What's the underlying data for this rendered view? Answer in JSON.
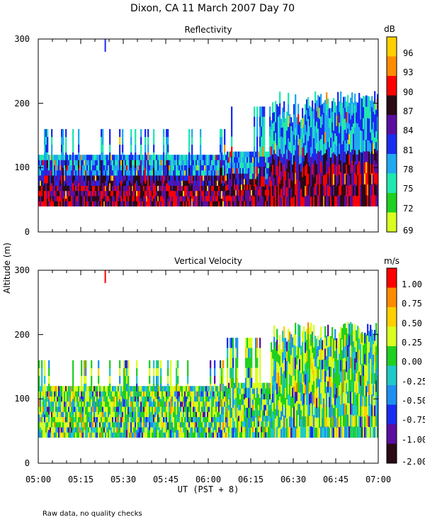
{
  "figure": {
    "title": "Dixon, CA 11 March 2007  Day  70",
    "ylabel": "Altitude (m)",
    "xlabel": "UT  (PST + 8)",
    "footnote": "Raw data, no quality checks",
    "x_ticks": [
      "05:00",
      "05:15",
      "05:30",
      "05:45",
      "06:00",
      "06:15",
      "06:30",
      "06:45",
      "07:00"
    ]
  },
  "chart_data": [
    {
      "type": "heatmap",
      "title": "Reflectivity",
      "xlabel": "UT  (PST + 8)",
      "ylabel": "Altitude (m)",
      "x_range": [
        "05:00",
        "07:00"
      ],
      "ylim": [
        0,
        300
      ],
      "y_ticks": [
        "0",
        "100",
        "200",
        "300"
      ],
      "colorbar": {
        "unit": "dB",
        "labels": [
          "96",
          "93",
          "90",
          "87",
          "84",
          "81",
          "78",
          "75",
          "72",
          "69"
        ],
        "colors": [
          "#ffd000",
          "#ff8c00",
          "#ff0000",
          "#2a0a14",
          "#5a0ea0",
          "#1a2cf0",
          "#20a8f0",
          "#20e8b0",
          "#20d020",
          "#d8ff20"
        ]
      }
    },
    {
      "type": "heatmap",
      "title": "Vertical Velocity",
      "xlabel": "UT  (PST + 8)",
      "ylabel": "Altitude (m)",
      "x_range": [
        "05:00",
        "07:00"
      ],
      "ylim": [
        0,
        300
      ],
      "y_ticks": [
        "0",
        "100",
        "200",
        "300"
      ],
      "colorbar": {
        "unit": "m/s",
        "labels": [
          "1.00",
          "0.75",
          "0.50",
          "0.25",
          "0.00",
          "-0.25",
          "-0.50",
          "-0.75",
          "-1.00",
          "-2.00"
        ],
        "colors": [
          "#ff0000",
          "#ff8c00",
          "#ffd000",
          "#d8ff20",
          "#20d020",
          "#20c8c8",
          "#2090f0",
          "#1a2cf0",
          "#5a0ea0",
          "#2a0a14"
        ]
      }
    }
  ]
}
